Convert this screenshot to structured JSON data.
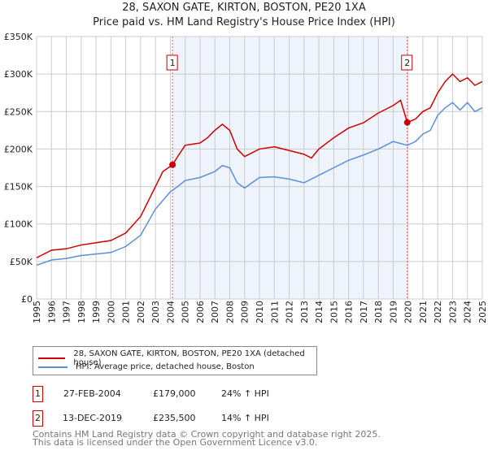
{
  "chart_data": {
    "type": "line",
    "title": "28, SAXON GATE, KIRTON, BOSTON, PE20 1XA",
    "subtitle": "Price paid vs. HM Land Registry's House Price Index (HPI)",
    "xlim": [
      1995,
      2025
    ],
    "ylim": [
      0,
      350000
    ],
    "yticks": [
      0,
      50000,
      100000,
      150000,
      200000,
      250000,
      300000,
      350000
    ],
    "ytick_labels": [
      "£0",
      "£50K",
      "£100K",
      "£150K",
      "£200K",
      "£250K",
      "£300K",
      "£350K"
    ],
    "xtick_labels": [
      "1995",
      "1996",
      "1997",
      "1998",
      "1999",
      "2000",
      "2001",
      "2002",
      "2003",
      "2004",
      "2005",
      "2006",
      "2007",
      "2008",
      "2009",
      "2010",
      "2011",
      "2012",
      "2013",
      "2014",
      "2015",
      "2016",
      "2017",
      "2018",
      "2019",
      "2020",
      "2021",
      "2022",
      "2023",
      "2024",
      "2025"
    ],
    "grid": true,
    "series": [
      {
        "name": "28, SAXON GATE, KIRTON, BOSTON, PE20 1XA (detached house)",
        "color": "#cc0000",
        "x": [
          1995,
          1996,
          1997,
          1998,
          1999,
          2000,
          2001,
          2002,
          2003,
          2003.5,
          2004.15,
          2004.5,
          2005,
          2006,
          2006.5,
          2007,
          2007.5,
          2008,
          2008.5,
          2009,
          2009.5,
          2010,
          2011,
          2012,
          2013,
          2013.5,
          2014,
          2015,
          2016,
          2017,
          2018,
          2019,
          2019.5,
          2019.95,
          2020.5,
          2021,
          2021.5,
          2022,
          2022.5,
          2023,
          2023.5,
          2024,
          2024.5,
          2025
        ],
        "y": [
          55000,
          65000,
          67000,
          72000,
          75000,
          78000,
          88000,
          110000,
          150000,
          170000,
          179000,
          190000,
          205000,
          208000,
          215000,
          225000,
          233000,
          225000,
          200000,
          190000,
          195000,
          200000,
          203000,
          198000,
          193000,
          188000,
          200000,
          215000,
          228000,
          235000,
          248000,
          258000,
          265000,
          235500,
          240000,
          250000,
          255000,
          275000,
          290000,
          300000,
          290000,
          295000,
          285000,
          290000
        ]
      },
      {
        "name": "HPI: Average price, detached house, Boston",
        "color": "#5b8fd6",
        "x": [
          1995,
          1996,
          1997,
          1998,
          1999,
          2000,
          2001,
          2002,
          2003,
          2004,
          2004.5,
          2005,
          2006,
          2007,
          2007.5,
          2008,
          2008.5,
          2009,
          2010,
          2011,
          2012,
          2013,
          2014,
          2015,
          2016,
          2017,
          2018,
          2019,
          2019.95,
          2020.5,
          2021,
          2021.5,
          2022,
          2022.5,
          2023,
          2023.5,
          2024,
          2024.5,
          2025
        ],
        "y": [
          45000,
          52000,
          54000,
          58000,
          60000,
          62000,
          70000,
          85000,
          120000,
          143000,
          150000,
          158000,
          162000,
          170000,
          178000,
          175000,
          155000,
          148000,
          162000,
          163000,
          160000,
          155000,
          165000,
          175000,
          185000,
          192000,
          200000,
          210000,
          205000,
          210000,
          220000,
          225000,
          245000,
          255000,
          262000,
          252000,
          262000,
          250000,
          255000
        ]
      }
    ],
    "annotations": [
      {
        "label": "1",
        "x": 2004.15,
        "y": 179000
      },
      {
        "label": "2",
        "x": 2019.95,
        "y": 235500
      }
    ],
    "shaded_range": [
      2004.15,
      2019.95
    ]
  },
  "sales": [
    {
      "num": "1",
      "date": "27-FEB-2004",
      "price": "£179,000",
      "hpi": "24% ↑ HPI"
    },
    {
      "num": "2",
      "date": "13-DEC-2019",
      "price": "£235,500",
      "hpi": "14% ↑ HPI"
    }
  ],
  "footer": [
    "Contains HM Land Registry data © Crown copyright and database right 2025.",
    "This data is licensed under the Open Government Licence v3.0."
  ]
}
